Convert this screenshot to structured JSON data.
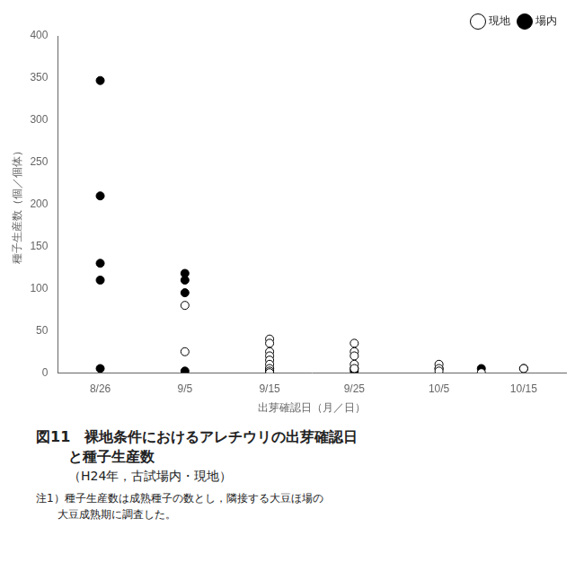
{
  "chart_data": {
    "type": "scatter",
    "title": [
      "図11　裸地条件におけるアレチウリの出芽確認日",
      "と種子生産数"
    ],
    "subtitle": "（H24年，古試場内・現地）",
    "annotations": [
      "注1）種子生産数は成熟種子の数とし，隣接する大豆ほ場の",
      "　　大豆成熟期に調査した。"
    ],
    "x_label": "出芽確認日（月／日）",
    "y_label": "種子生産数（個／個体）",
    "xlim": [
      233,
      293
    ],
    "xticks": [
      {
        "value": 238,
        "label": "8/26"
      },
      {
        "value": 248,
        "label": "9/5"
      },
      {
        "value": 258,
        "label": "9/15"
      },
      {
        "value": 268,
        "label": "9/25"
      },
      {
        "value": 278,
        "label": "10/5"
      },
      {
        "value": 288,
        "label": "10/15"
      }
    ],
    "ylim": [
      0,
      400
    ],
    "yticks": [
      0,
      50,
      100,
      150,
      200,
      250,
      300,
      350,
      400
    ],
    "grid": false,
    "legend": "upper right",
    "series": [
      {
        "name": "現地",
        "color": "#ffffff",
        "marker": "circle",
        "x": [
          248,
          248,
          258,
          258,
          258,
          258,
          258,
          258,
          258,
          258,
          258,
          268,
          268,
          268,
          268,
          268,
          278,
          278,
          278,
          283,
          288
        ],
        "values": [
          80,
          25,
          40,
          35,
          25,
          20,
          15,
          10,
          5,
          2,
          0,
          35,
          25,
          20,
          10,
          5,
          10,
          5,
          2,
          0,
          5
        ]
      },
      {
        "name": "場内",
        "color": "#000000",
        "marker": "circle",
        "x": [
          238,
          238,
          238,
          238,
          238,
          248,
          248,
          248,
          248,
          258,
          258,
          258,
          268,
          268,
          278,
          283,
          288
        ],
        "values": [
          347,
          210,
          130,
          110,
          5,
          118,
          110,
          95,
          2,
          5,
          3,
          1,
          5,
          2,
          5,
          5,
          5
        ]
      }
    ]
  }
}
